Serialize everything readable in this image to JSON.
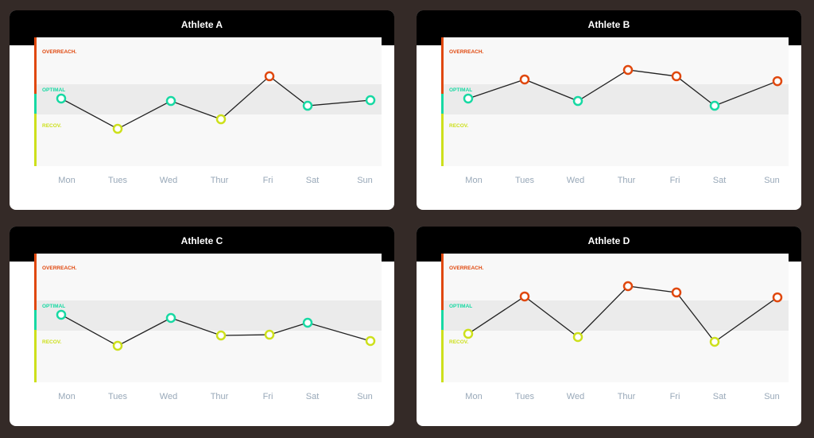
{
  "colors": {
    "overreach": "#e0480e",
    "optimal": "#17d9a3",
    "recovery": "#cde01c",
    "line": "#222222",
    "background": "#342a27"
  },
  "zones": {
    "overreach": "OVERREACH.",
    "optimal": "OPTIMAL",
    "recovery": "RECOV.",
    "optimal_range": [
      40,
      64
    ]
  },
  "chart_data": [
    {
      "type": "line",
      "title": "Athlete A",
      "categories": [
        "Mon",
        "Tues",
        "Wed",
        "Thur",
        "Fri",
        "Sat",
        "Sun"
      ],
      "values": [
        52.5,
        29,
        50.6,
        36.4,
        69.8,
        46.9,
        51.2
      ],
      "status": [
        "optimal",
        "recovery",
        "optimal",
        "recovery",
        "overreach",
        "optimal",
        "optimal"
      ],
      "ylim": [
        0,
        100
      ]
    },
    {
      "type": "line",
      "title": "Athlete B",
      "categories": [
        "Mon",
        "Tues",
        "Wed",
        "Thur",
        "Fri",
        "Sat",
        "Sun"
      ],
      "values": [
        52.5,
        67.3,
        50.6,
        74.7,
        69.8,
        46.9,
        66
      ],
      "status": [
        "optimal",
        "overreach",
        "optimal",
        "overreach",
        "overreach",
        "optimal",
        "overreach"
      ],
      "ylim": [
        0,
        100
      ]
    },
    {
      "type": "line",
      "title": "Athlete C",
      "categories": [
        "Mon",
        "Tues",
        "Wed",
        "Thur",
        "Fri",
        "Sat",
        "Sun"
      ],
      "values": [
        52.5,
        28.4,
        50,
        36.4,
        37,
        46.3,
        32.1
      ],
      "status": [
        "optimal",
        "recovery",
        "optimal",
        "recovery",
        "recovery",
        "optimal",
        "recovery"
      ],
      "ylim": [
        0,
        100
      ]
    },
    {
      "type": "line",
      "title": "Athlete D",
      "categories": [
        "Mon",
        "Tues",
        "Wed",
        "Thur",
        "Fri",
        "Sat",
        "Sun"
      ],
      "values": [
        37.7,
        66.7,
        35.2,
        74.7,
        69.8,
        31.5,
        66
      ],
      "status": [
        "recovery",
        "overreach",
        "recovery",
        "overreach",
        "overreach",
        "recovery",
        "overreach"
      ],
      "ylim": [
        0,
        100
      ]
    }
  ]
}
